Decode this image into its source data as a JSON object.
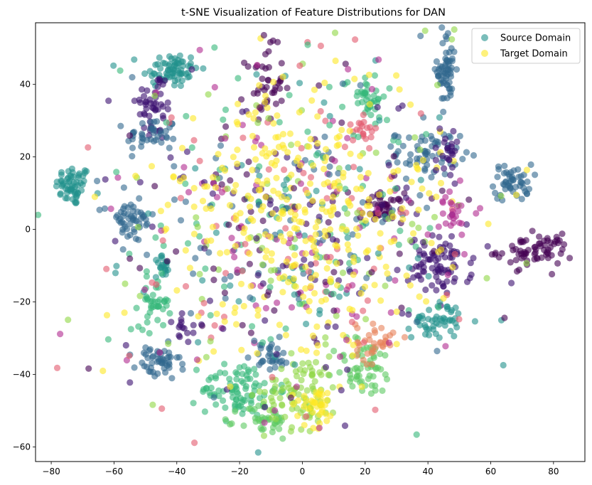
{
  "chart_data": {
    "type": "scatter",
    "title": "t-SNE Visualization of Feature Distributions for DAN",
    "xlabel": "",
    "ylabel": "",
    "xlim": [
      -85,
      90
    ],
    "ylim": [
      -64,
      57
    ],
    "xticks": [
      -80,
      -60,
      -40,
      -20,
      0,
      20,
      40,
      60,
      80
    ],
    "yticks": [
      -60,
      -40,
      -20,
      0,
      20,
      40
    ],
    "grid": false,
    "legend": {
      "position": "top-right",
      "entries": [
        {
          "name": "Source Domain",
          "color": "#21918c"
        },
        {
          "name": "Target Domain",
          "color": "#fde725"
        }
      ]
    },
    "marker_alpha": 0.6,
    "palette": [
      "#440154",
      "#3b0f70",
      "#31688e",
      "#21918c",
      "#35b779",
      "#8fd744",
      "#fde725",
      "#e35a6e",
      "#b12a90"
    ],
    "clusters": [
      {
        "label": "Source Domain",
        "center": [
          -73,
          12
        ],
        "spread": [
          2.8,
          2.8
        ],
        "n": 60,
        "color": "#21918c"
      },
      {
        "label": "Source Domain",
        "center": [
          -42,
          44
        ],
        "spread": [
          4.5,
          2.5
        ],
        "n": 70,
        "color": "#21918c"
      },
      {
        "label": "Source Domain",
        "center": [
          -47,
          34
        ],
        "spread": [
          3,
          5
        ],
        "n": 50,
        "color": "#3b0f70"
      },
      {
        "label": "Source Domain",
        "center": [
          -48,
          26
        ],
        "spread": [
          4,
          2.5
        ],
        "n": 40,
        "color": "#31688e"
      },
      {
        "label": "Source Domain",
        "center": [
          -12,
          40
        ],
        "spread": [
          3,
          5
        ],
        "n": 40,
        "color": "#440154"
      },
      {
        "label": "Source Domain",
        "center": [
          46,
          44
        ],
        "spread": [
          1.5,
          5
        ],
        "n": 60,
        "color": "#31688e"
      },
      {
        "label": "Source Domain",
        "center": [
          67,
          13
        ],
        "spread": [
          3,
          2.5
        ],
        "n": 50,
        "color": "#31688e"
      },
      {
        "label": "Source Domain",
        "center": [
          74,
          -6
        ],
        "spread": [
          6,
          2.2
        ],
        "n": 70,
        "color": "#440154"
      },
      {
        "label": "Source Domain",
        "center": [
          26,
          6
        ],
        "spread": [
          3,
          2
        ],
        "n": 45,
        "color": "#440154"
      },
      {
        "label": "Source Domain",
        "center": [
          44,
          -10
        ],
        "spread": [
          5,
          4
        ],
        "n": 80,
        "color": "#3b0f70"
      },
      {
        "label": "Source Domain",
        "center": [
          43,
          -25
        ],
        "spread": [
          4,
          2.5
        ],
        "n": 50,
        "color": "#21918c"
      },
      {
        "label": "Source Domain",
        "center": [
          40,
          21
        ],
        "spread": [
          5,
          3
        ],
        "n": 60,
        "color": "#31688e"
      },
      {
        "label": "Source Domain",
        "center": [
          -55,
          2
        ],
        "spread": [
          4,
          3
        ],
        "n": 50,
        "color": "#31688e"
      },
      {
        "label": "Source Domain",
        "center": [
          -44,
          -10
        ],
        "spread": [
          1.5,
          1.5
        ],
        "n": 20,
        "color": "#21918c"
      },
      {
        "label": "Source Domain",
        "center": [
          -47,
          -20
        ],
        "spread": [
          2.5,
          3.5
        ],
        "n": 40,
        "color": "#35b779"
      },
      {
        "label": "Source Domain",
        "center": [
          -46,
          -37
        ],
        "spread": [
          3.5,
          2.5
        ],
        "n": 50,
        "color": "#31688e"
      },
      {
        "label": "Source Domain",
        "center": [
          20,
          37
        ],
        "spread": [
          3.5,
          3
        ],
        "n": 40,
        "color": "#35b779"
      },
      {
        "label": "Source Domain",
        "center": [
          -20,
          -44
        ],
        "spread": [
          6,
          4
        ],
        "n": 90,
        "color": "#35b779"
      },
      {
        "label": "Source Domain",
        "center": [
          -12,
          -53
        ],
        "spread": [
          4,
          2.5
        ],
        "n": 40,
        "color": "#5ec962"
      },
      {
        "label": "Source Domain",
        "center": [
          20,
          -38
        ],
        "spread": [
          5,
          4
        ],
        "n": 60,
        "color": "#5ec962"
      },
      {
        "label": "Source Domain",
        "center": [
          -10,
          -35
        ],
        "spread": [
          3,
          2
        ],
        "n": 30,
        "color": "#31688e"
      },
      {
        "label": "Source Domain",
        "center": [
          0,
          -45
        ],
        "spread": [
          6,
          5
        ],
        "n": 90,
        "color": "#8fd744"
      },
      {
        "label": "Target Domain",
        "center": [
          4,
          -48
        ],
        "spread": [
          4,
          3
        ],
        "n": 40,
        "color": "#fde725"
      },
      {
        "label": "Source Domain",
        "center": [
          23,
          -31
        ],
        "spread": [
          3,
          3
        ],
        "n": 35,
        "color": "#e8825a"
      },
      {
        "label": "Source Domain",
        "center": [
          20,
          27
        ],
        "spread": [
          2,
          2
        ],
        "n": 20,
        "color": "#e35a6e"
      },
      {
        "label": "Source Domain",
        "center": [
          -3,
          0
        ],
        "spread": [
          28,
          22
        ],
        "n": 700,
        "color": "mixed"
      },
      {
        "label": "Target Domain",
        "center": [
          0,
          5
        ],
        "spread": [
          22,
          18
        ],
        "n": 260,
        "color": "#fde725"
      },
      {
        "label": "Source Domain",
        "center": [
          -37,
          -27
        ],
        "spread": [
          2,
          2
        ],
        "n": 15,
        "color": "#3b0f70"
      },
      {
        "label": "Source Domain",
        "center": [
          48,
          4
        ],
        "spread": [
          3,
          3
        ],
        "n": 25,
        "color": "#b12a90"
      },
      {
        "label": "Source Domain",
        "center": [
          46,
          20
        ],
        "spread": [
          2,
          3
        ],
        "n": 25,
        "color": "#3b0f70"
      }
    ]
  }
}
